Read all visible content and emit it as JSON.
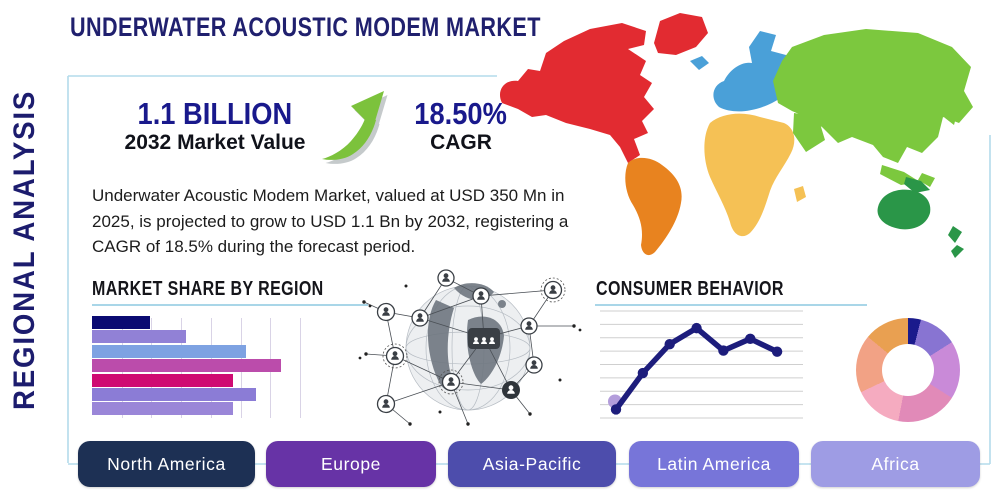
{
  "title": "UNDERWATER ACOUSTIC MODEM MARKET",
  "side_label": "REGIONAL ANALYSIS",
  "title_color": "#20206e",
  "frame_color": "#b4dbeb",
  "stats": {
    "market_value": "1.1 BILLION",
    "market_value_label": "2032 Market Value",
    "cagr_value": "18.50%",
    "cagr_label": "CAGR",
    "growth_arrow_icon": "growth-arrow",
    "arrow_green": "#7cc23c"
  },
  "description": "Underwater Acoustic Modem Market, valued at USD 350 Mn in 2025, is projected to grow to USD 1.1 Bn by 2032, registering a CAGR of 18.5% during the forecast period.",
  "sections": {
    "bar_chart_heading": "MARKET SHARE BY REGION",
    "line_chart_heading": "CONSUMER BEHAVIOR"
  },
  "chart_data": [
    {
      "type": "bar",
      "title": "MARKET SHARE BY REGION",
      "orientation": "horizontal",
      "categories": [
        "",
        "",
        "",
        "",
        "",
        "",
        ""
      ],
      "values": [
        28,
        45,
        74,
        91,
        68,
        79,
        68
      ],
      "xlabel": "",
      "ylabel": "",
      "xlim": [
        0,
        100
      ],
      "unit": "percent of axis (bars unlabeled in source)",
      "grid": true,
      "colors": [
        "#0a0a72",
        "#9181d6",
        "#7ea2e2",
        "#bb4cab",
        "#cf0a72",
        "#8b7cd6",
        "#9a86d8"
      ]
    },
    {
      "type": "line",
      "title": "CONSUMER BEHAVIOR",
      "x": [
        1,
        2,
        3,
        4,
        5,
        6,
        7
      ],
      "values": [
        0.8,
        4.2,
        6.9,
        8.4,
        6.3,
        7.4,
        6.2
      ],
      "xlabel": "",
      "ylabel": "",
      "ylim": [
        0,
        10
      ],
      "grid": true,
      "line_color": "#1d1d7c",
      "start_marker_color": "#b39ddb",
      "note": "axes and points unlabeled in source"
    },
    {
      "type": "pie",
      "subtype": "donut",
      "values": [
        4,
        12,
        18,
        19,
        15,
        18,
        14
      ],
      "colors": [
        "#1a1a8c",
        "#8874d2",
        "#c98ad8",
        "#e18ab8",
        "#f5abc0",
        "#f2a285",
        "#e9a051"
      ],
      "note": "slices unlabeled in source"
    }
  ],
  "map": {
    "regions": [
      {
        "name": "North America",
        "color": "#e22b31"
      },
      {
        "name": "Greenland",
        "color": "#e22b31"
      },
      {
        "name": "South America",
        "color": "#e8831f"
      },
      {
        "name": "Europe",
        "color": "#4aa0d8"
      },
      {
        "name": "Africa",
        "color": "#f5c155"
      },
      {
        "name": "Asia",
        "color": "#7cc83e"
      },
      {
        "name": "Oceania",
        "color": "#2a9648"
      }
    ]
  },
  "region_buttons": [
    {
      "label": "North America",
      "color": "#1d3054"
    },
    {
      "label": "Europe",
      "color": "#6733a6"
    },
    {
      "label": "Asia-Pacific",
      "color": "#4d4dac"
    },
    {
      "label": "Latin America",
      "color": "#7775d9"
    },
    {
      "label": "Africa",
      "color": "#9e9ce4"
    }
  ]
}
